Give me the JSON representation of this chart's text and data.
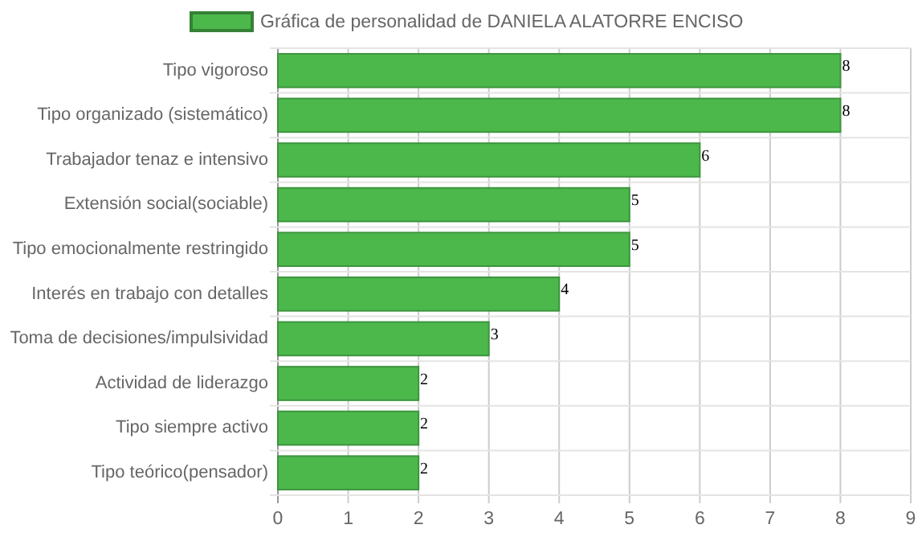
{
  "chart_data": {
    "type": "bar",
    "orientation": "horizontal",
    "categories": [
      "Tipo vigoroso",
      "Tipo organizado (sistemático)",
      "Trabajador tenaz e intensivo",
      "Extensión social(sociable)",
      "Tipo emocionalmente restringido",
      "Interés en trabajo con detalles",
      "Toma de decisiones/impulsividad",
      "Actividad de liderazgo",
      "Tipo siempre activo",
      "Tipo teórico(pensador)"
    ],
    "series": [
      {
        "name": "Gráfica de personalidad de DANIELA ALATORRE ENCISO",
        "color": "#4cb84c",
        "values": [
          8,
          8,
          6,
          5,
          5,
          4,
          3,
          2,
          2,
          2
        ]
      }
    ],
    "xlim": [
      0,
      9
    ],
    "xticks": [
      0,
      1,
      2,
      3,
      4,
      5,
      6,
      7,
      8,
      9
    ],
    "grid": true,
    "legend": "top",
    "data_labels": true
  }
}
